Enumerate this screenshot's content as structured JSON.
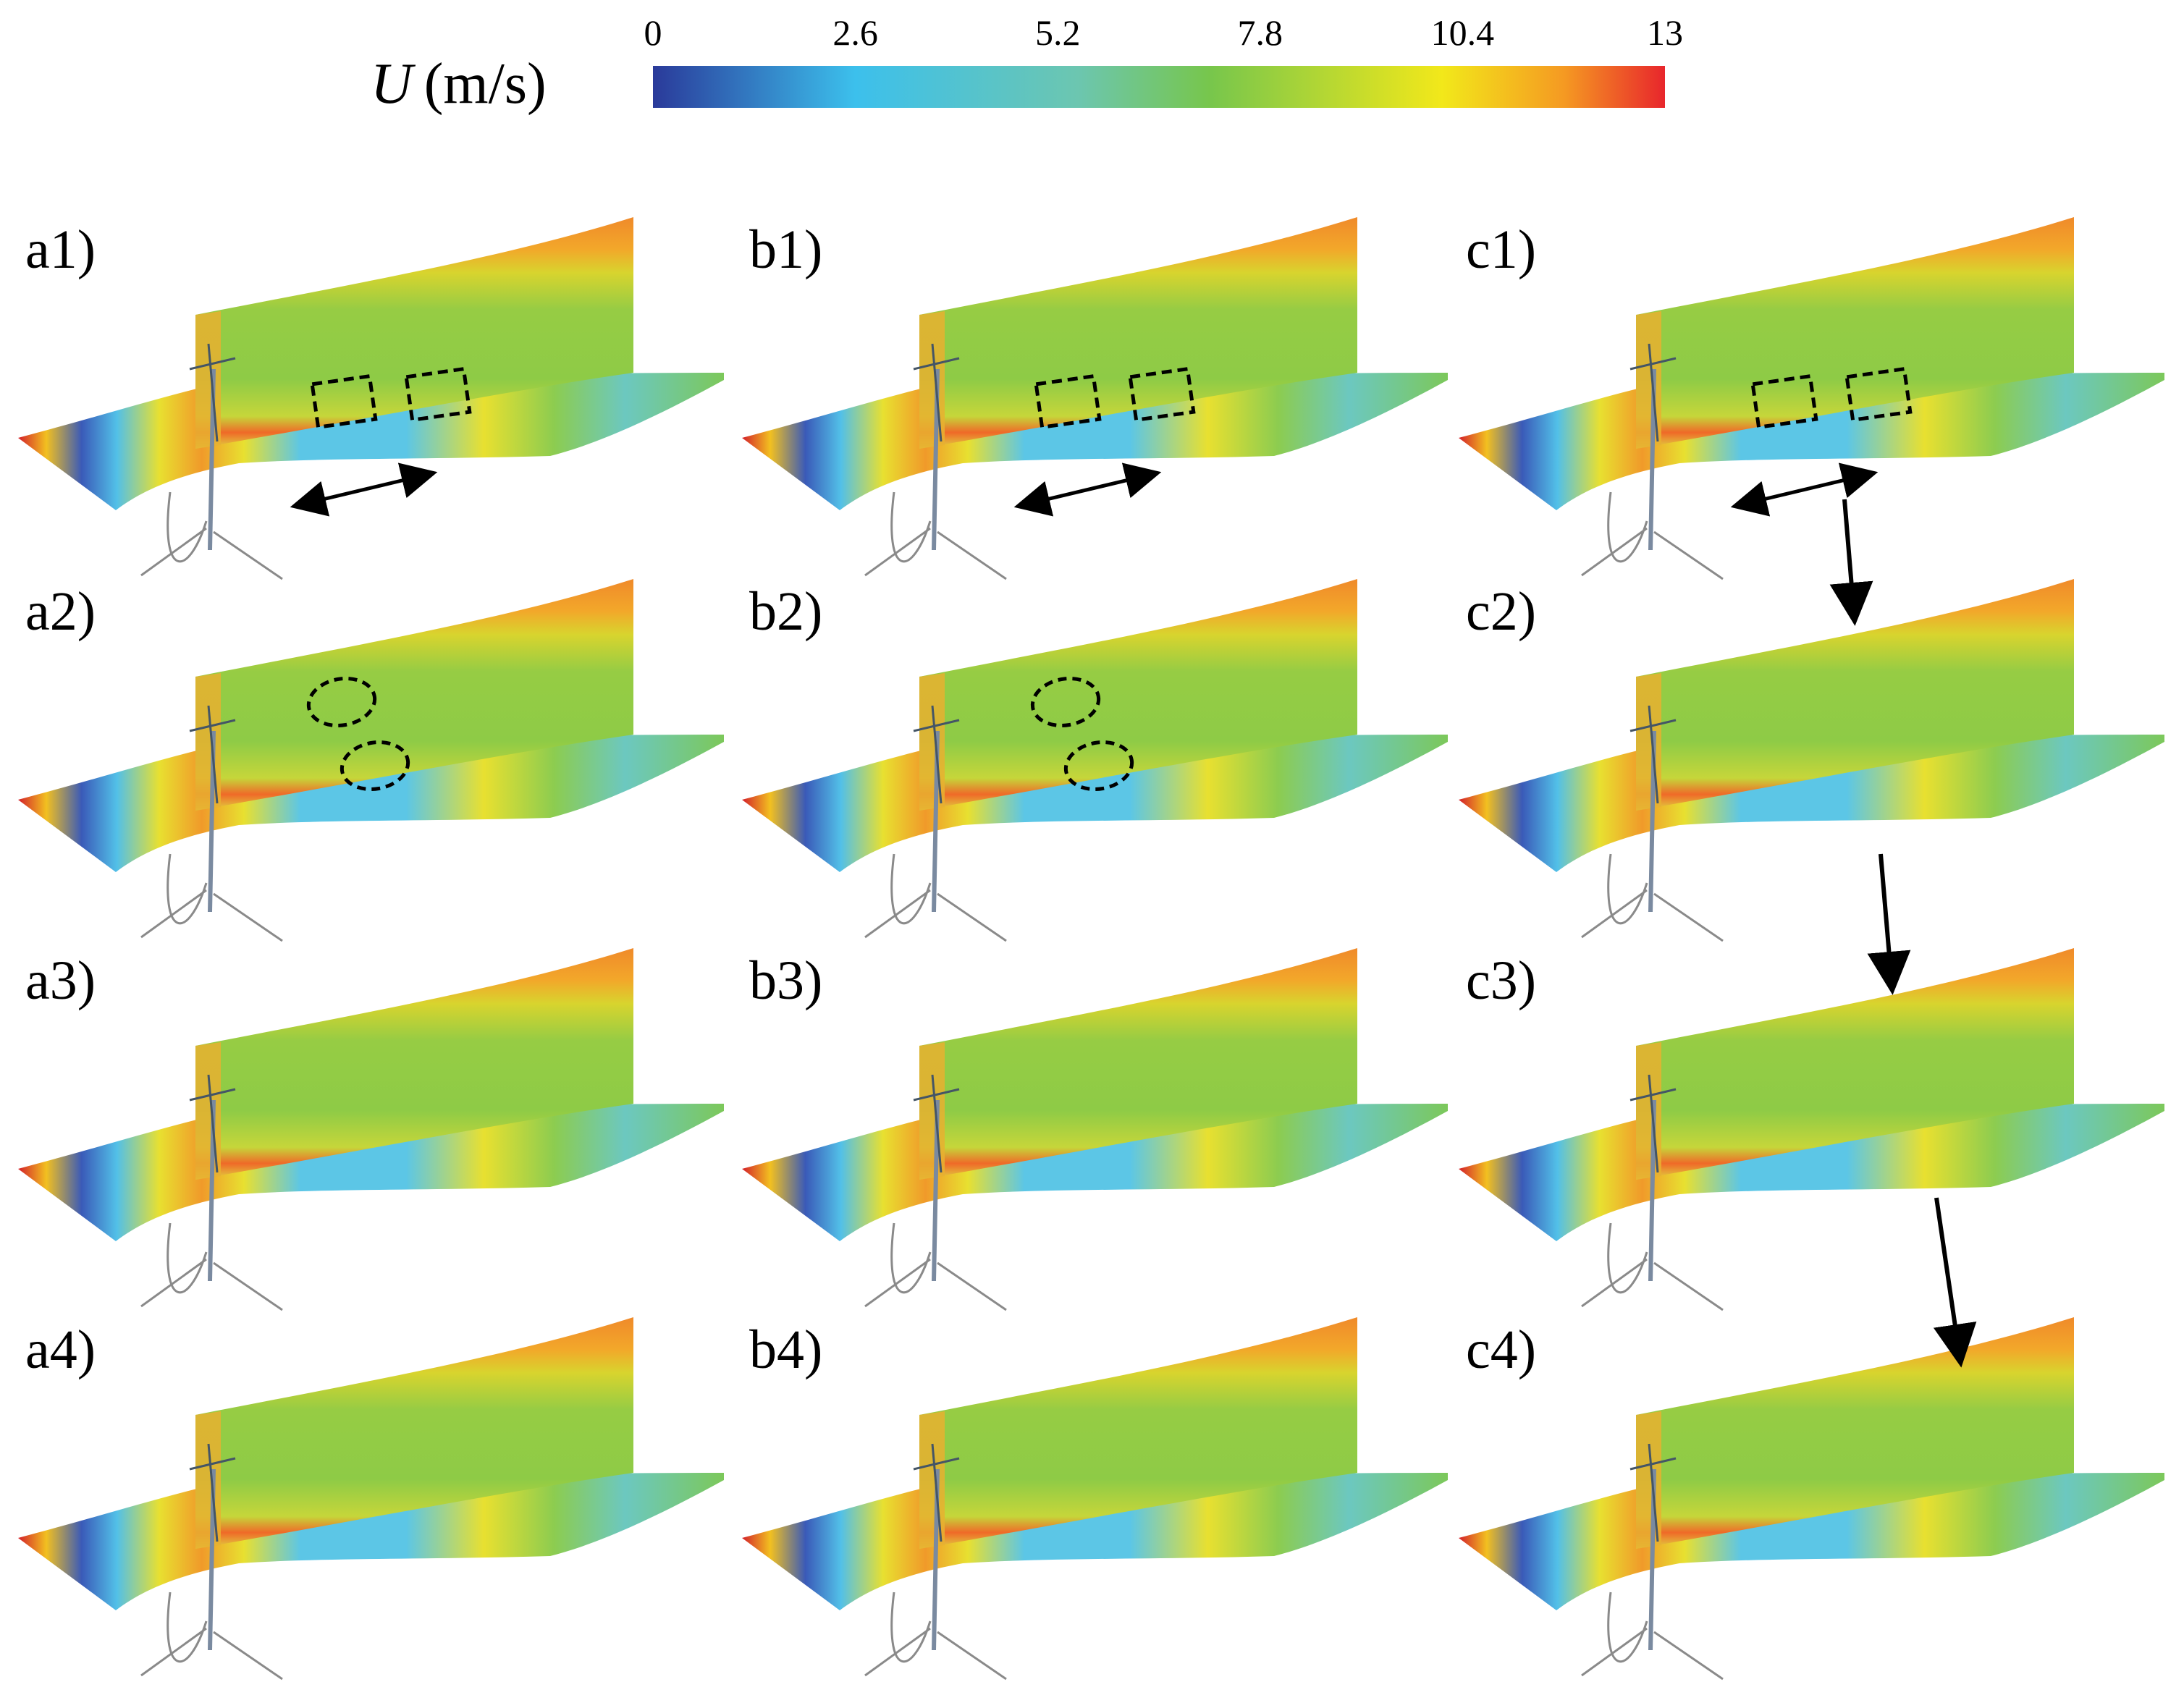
{
  "colorbar": {
    "variable": "U",
    "unit": "(m/s)",
    "ticks": [
      "0",
      "2.6",
      "5.2",
      "7.8",
      "10.4",
      "13"
    ],
    "colors": [
      "#2a3a9a",
      "#3cc0ec",
      "#77c64c",
      "#f2e81a",
      "#e8262c"
    ]
  },
  "panels": [
    {
      "label": "a1)",
      "col": 0,
      "row": 0,
      "boxes": 2,
      "ellipses": 0,
      "arrow": true
    },
    {
      "label": "b1)",
      "col": 1,
      "row": 0,
      "boxes": 2,
      "ellipses": 0,
      "arrow": true
    },
    {
      "label": "c1)",
      "col": 2,
      "row": 0,
      "boxes": 2,
      "ellipses": 0,
      "arrow": true
    },
    {
      "label": "a2)",
      "col": 0,
      "row": 1,
      "boxes": 0,
      "ellipses": 2,
      "arrow": false
    },
    {
      "label": "b2)",
      "col": 1,
      "row": 1,
      "boxes": 0,
      "ellipses": 2,
      "arrow": false
    },
    {
      "label": "c2)",
      "col": 2,
      "row": 1,
      "boxes": 0,
      "ellipses": 0,
      "arrow": false
    },
    {
      "label": "a3)",
      "col": 0,
      "row": 2,
      "boxes": 0,
      "ellipses": 0,
      "arrow": false
    },
    {
      "label": "b3)",
      "col": 1,
      "row": 2,
      "boxes": 0,
      "ellipses": 0,
      "arrow": false
    },
    {
      "label": "c3)",
      "col": 2,
      "row": 2,
      "boxes": 0,
      "ellipses": 0,
      "arrow": false
    },
    {
      "label": "a4)",
      "col": 0,
      "row": 3,
      "boxes": 0,
      "ellipses": 0,
      "arrow": false
    },
    {
      "label": "b4)",
      "col": 1,
      "row": 3,
      "boxes": 0,
      "ellipses": 0,
      "arrow": false
    },
    {
      "label": "c4)",
      "col": 2,
      "row": 3,
      "boxes": 0,
      "ellipses": 0,
      "arrow": false
    }
  ],
  "sequence_arrows": [
    {
      "from": "c1)",
      "to": "c2)"
    },
    {
      "from": "c2)",
      "to": "c3)"
    },
    {
      "from": "c3)",
      "to": "c4)"
    }
  ]
}
